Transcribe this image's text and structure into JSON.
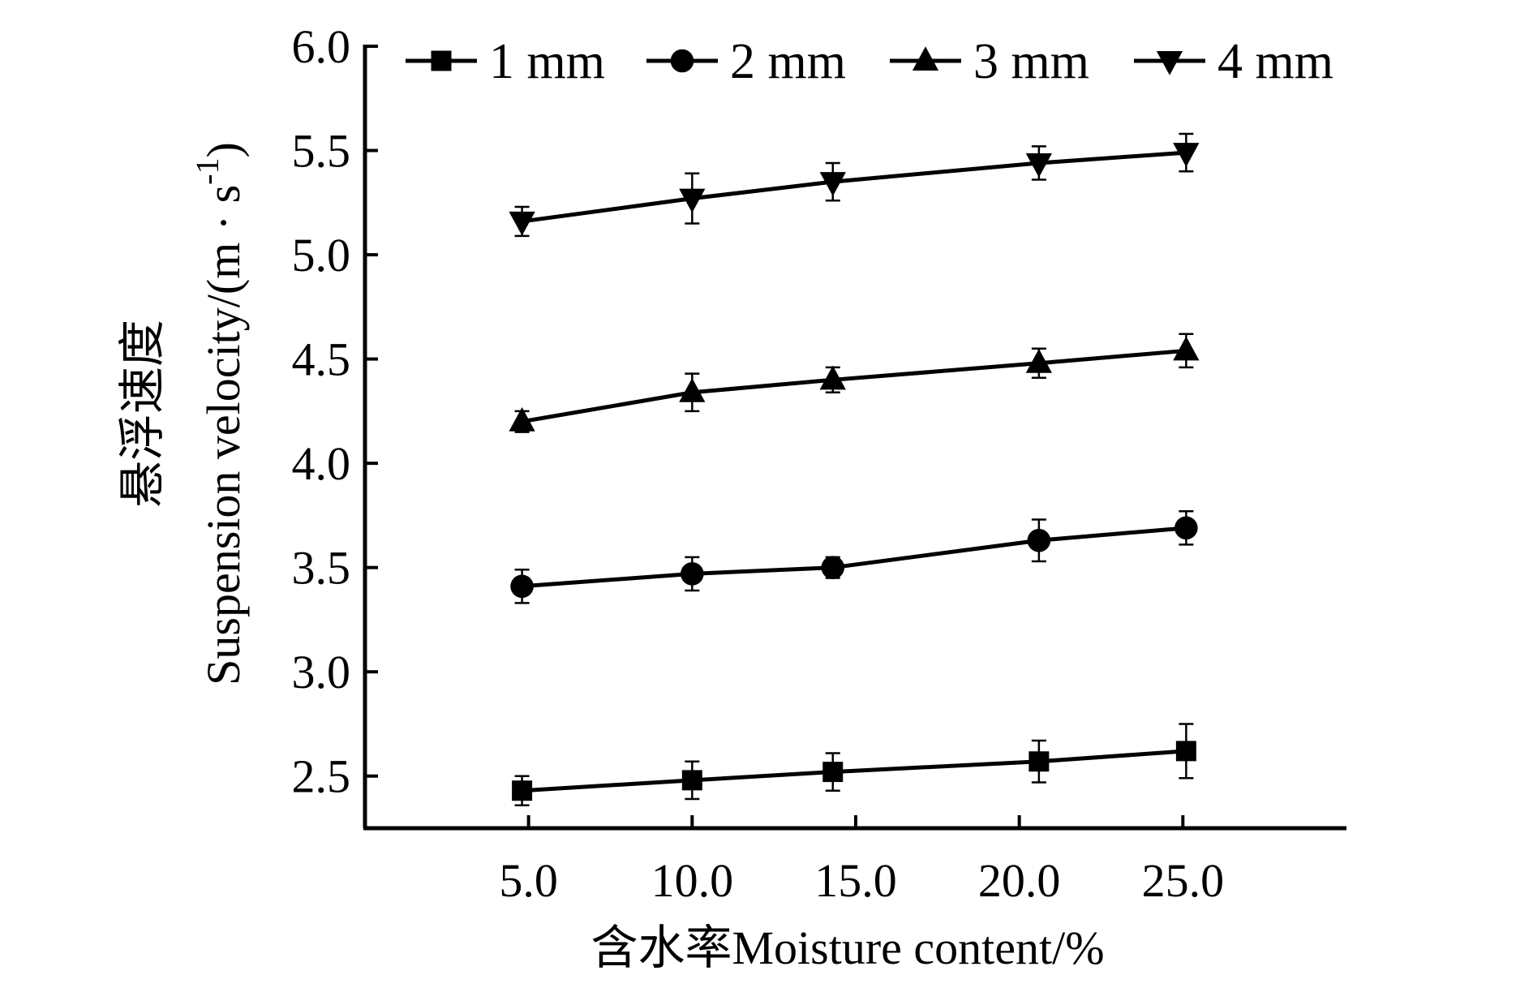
{
  "chart_data": {
    "type": "line",
    "xlabel": "含水率Moisture content/%",
    "ylabel_cn": "悬浮速度",
    "ylabel_en": "Suspension velocity/(m · s",
    "ylabel_exp": "-1",
    "ylabel_close": ")",
    "xlim": [
      0,
      30
    ],
    "ylim": [
      2.25,
      6.0
    ],
    "x_ticks": [
      5,
      10,
      15,
      20,
      25
    ],
    "x_tick_labels": [
      "5.0",
      "10.0",
      "15.0",
      "20.0",
      "25.0"
    ],
    "y_ticks": [
      2.5,
      3.0,
      3.5,
      4.0,
      4.5,
      5.0,
      5.5,
      6.0
    ],
    "y_tick_labels": [
      "2.5",
      "3.0",
      "3.5",
      "4.0",
      "4.5",
      "5.0",
      "5.5",
      "6.0"
    ],
    "grid": false,
    "legend_position": "top",
    "x": [
      4.8,
      10.0,
      14.3,
      20.6,
      25.1
    ],
    "series": [
      {
        "name": "1 mm",
        "marker": "square",
        "values": [
          2.43,
          2.48,
          2.52,
          2.57,
          2.62
        ],
        "errors": [
          0.07,
          0.09,
          0.09,
          0.1,
          0.13
        ]
      },
      {
        "name": "2 mm",
        "marker": "circle",
        "values": [
          3.41,
          3.47,
          3.5,
          3.63,
          3.69
        ],
        "errors": [
          0.08,
          0.08,
          0.05,
          0.1,
          0.08
        ]
      },
      {
        "name": "3 mm",
        "marker": "triangle-up",
        "values": [
          4.2,
          4.34,
          4.4,
          4.48,
          4.54
        ],
        "errors": [
          0.05,
          0.09,
          0.06,
          0.07,
          0.08
        ]
      },
      {
        "name": "4 mm",
        "marker": "triangle-down",
        "values": [
          5.16,
          5.27,
          5.35,
          5.44,
          5.49
        ],
        "errors": [
          0.07,
          0.12,
          0.09,
          0.08,
          0.09
        ]
      }
    ]
  }
}
